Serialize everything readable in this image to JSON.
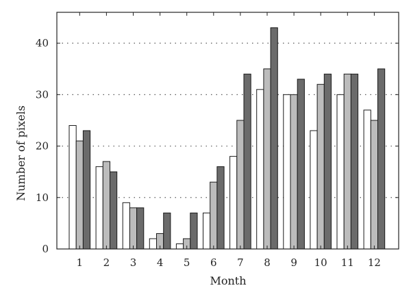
{
  "chart_data": {
    "type": "bar",
    "xlabel": "Month",
    "ylabel": "Number of pixels",
    "categories": [
      "1",
      "2",
      "3",
      "4",
      "5",
      "6",
      "7",
      "8",
      "9",
      "10",
      "11",
      "12"
    ],
    "series": [
      {
        "values": [
          24,
          16,
          9,
          2,
          1,
          7,
          18,
          31,
          30,
          23,
          30,
          27
        ],
        "color": "#ffffff"
      },
      {
        "values": [
          21,
          17,
          8,
          3,
          2,
          13,
          25,
          35,
          30,
          32,
          34,
          25
        ],
        "color": "#bcbcbc"
      },
      {
        "values": [
          23,
          15,
          8,
          7,
          7,
          16,
          34,
          43,
          33,
          34,
          34,
          35
        ],
        "color": "#6b6b6b"
      }
    ],
    "ylim": [
      0,
      46
    ],
    "yticks": [
      0,
      10,
      20,
      30,
      40
    ],
    "grid": "horizontal dotted",
    "legend": "none"
  }
}
